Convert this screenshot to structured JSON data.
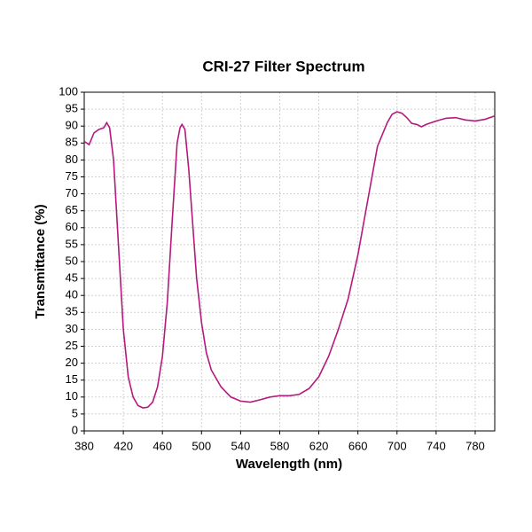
{
  "chart_data": {
    "type": "line",
    "title": "CRI-27 Filter Spectrum",
    "x_label": "Wavelength (nm)",
    "y_label": "Transmittance (%)",
    "x": [
      380,
      385,
      390,
      395,
      400,
      403,
      406,
      410,
      415,
      420,
      425,
      430,
      435,
      440,
      445,
      450,
      455,
      460,
      465,
      470,
      475,
      478,
      480,
      483,
      487,
      490,
      495,
      500,
      505,
      510,
      520,
      530,
      540,
      550,
      560,
      570,
      580,
      590,
      600,
      610,
      620,
      630,
      640,
      650,
      660,
      670,
      680,
      690,
      695,
      700,
      705,
      710,
      715,
      720,
      725,
      730,
      740,
      750,
      760,
      770,
      780,
      790,
      800
    ],
    "series": [
      {
        "name": "CRI-27",
        "color": "#b5197d",
        "values": [
          85.5,
          84.5,
          88,
          89,
          89.5,
          91,
          89.5,
          80,
          55,
          30,
          16,
          10,
          7.5,
          6.8,
          7,
          8.5,
          13,
          22,
          38,
          62,
          85,
          89.5,
          90.5,
          89,
          77,
          65,
          45,
          32,
          23,
          18,
          13,
          10,
          8.8,
          8.5,
          9.2,
          10,
          10.4,
          10.4,
          10.8,
          12.5,
          16,
          22,
          30,
          39,
          52,
          68,
          84,
          91,
          93.5,
          94.2,
          93.8,
          92.5,
          90.8,
          90.5,
          89.8,
          90.5,
          91.5,
          92.3,
          92.5,
          91.8,
          91.5,
          92,
          93
        ]
      }
    ],
    "xlim": [
      380,
      800
    ],
    "xticks": [
      380,
      420,
      460,
      500,
      540,
      580,
      620,
      660,
      700,
      740,
      780
    ],
    "ylim": [
      0,
      100
    ],
    "yticks": [
      0,
      5,
      10,
      15,
      20,
      25,
      30,
      35,
      40,
      45,
      50,
      55,
      60,
      65,
      70,
      75,
      80,
      85,
      90,
      95,
      100
    ],
    "grid": true
  }
}
